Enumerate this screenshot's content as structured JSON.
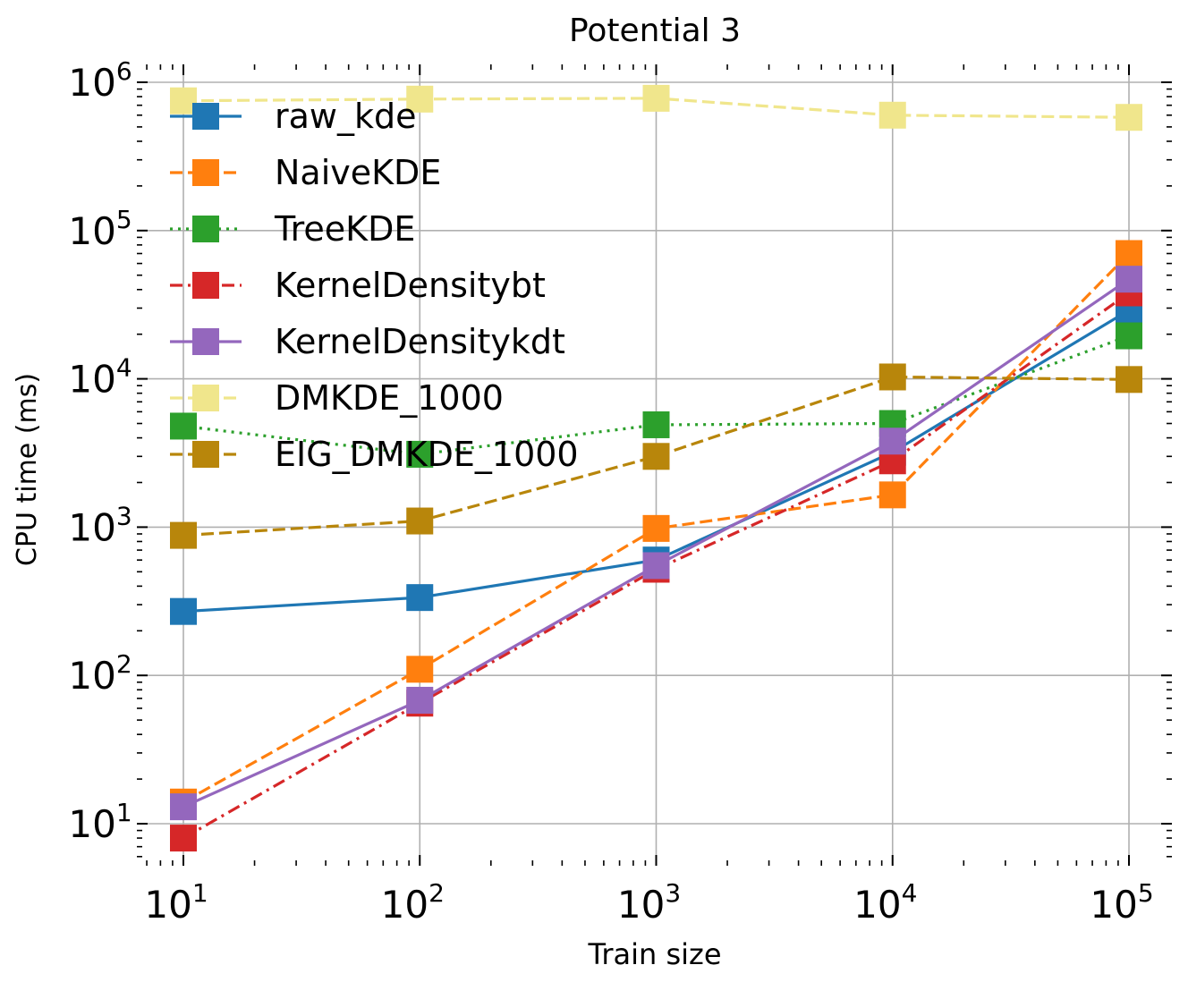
{
  "chart_data": {
    "type": "line",
    "title": "Potential 3",
    "xlabel": "Train size",
    "ylabel": "CPU time (ms)",
    "xscale": "log",
    "yscale": "log",
    "xlim": [
      6.5,
      150000
    ],
    "ylim": [
      5,
      2000000
    ],
    "grid": true,
    "legend_position": "upper-left",
    "x": [
      10,
      100,
      1000,
      10000,
      100000
    ],
    "x_tick_labels": [
      {
        "value": 10,
        "base": "10",
        "exp": "1"
      },
      {
        "value": 100,
        "base": "10",
        "exp": "2"
      },
      {
        "value": 1000,
        "base": "10",
        "exp": "3"
      },
      {
        "value": 10000,
        "base": "10",
        "exp": "4"
      },
      {
        "value": 100000,
        "base": "10",
        "exp": "5"
      }
    ],
    "y_tick_labels": [
      {
        "value": 10,
        "base": "10",
        "exp": "1"
      },
      {
        "value": 100,
        "base": "10",
        "exp": "2"
      },
      {
        "value": 1000,
        "base": "10",
        "exp": "3"
      },
      {
        "value": 10000,
        "base": "10",
        "exp": "4"
      },
      {
        "value": 100000,
        "base": "10",
        "exp": "5"
      },
      {
        "value": 1000000,
        "base": "10",
        "exp": "6"
      }
    ],
    "series": [
      {
        "name": "raw_kde",
        "color": "#1f77b4",
        "dash": "solid",
        "values": [
          270,
          335,
          600,
          3200,
          29000
        ]
      },
      {
        "name": "NaiveKDE",
        "color": "#ff7f0e",
        "dash": "dashed",
        "values": [
          14,
          110,
          980,
          1650,
          70000
        ]
      },
      {
        "name": "TreeKDE",
        "color": "#2ca02c",
        "dash": "dotted",
        "values": [
          4800,
          3100,
          4900,
          5000,
          19500
        ]
      },
      {
        "name": "KernelDensitybt",
        "color": "#d62728",
        "dash": "dashdot",
        "values": [
          8,
          65,
          520,
          2800,
          38000
        ]
      },
      {
        "name": "KernelDensitykdt",
        "color": "#9467bd",
        "dash": "solid",
        "values": [
          13,
          68,
          550,
          3800,
          47000
        ]
      },
      {
        "name": "DMKDE_1000",
        "color": "#f0e68c",
        "dash": "dashed",
        "values": [
          750000,
          770000,
          780000,
          600000,
          580000
        ]
      },
      {
        "name": "EIG_DMKDE_1000",
        "color": "#b8860b",
        "dash": "dashed",
        "values": [
          880,
          1100,
          3000,
          10300,
          9900
        ]
      }
    ]
  }
}
